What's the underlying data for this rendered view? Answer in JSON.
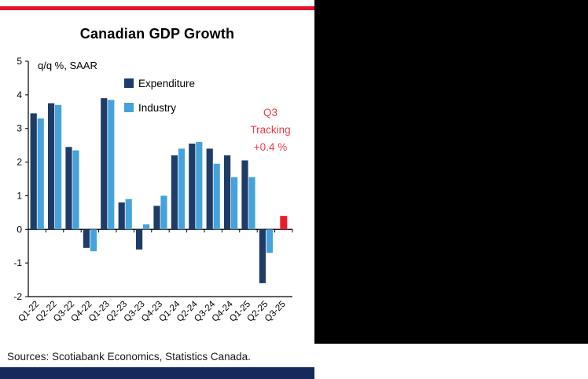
{
  "card": {
    "title": "Canadian GDP Growth",
    "plot_note": "q/q %, SAAR",
    "source": "Sources: Scotiabank Economics, Statistics Canada.",
    "accent_color": "#E8112A",
    "footer_color": "#17295B"
  },
  "legend": {
    "items": [
      {
        "label": "Expenditure",
        "color": "#1F3C68"
      },
      {
        "label": "Industry",
        "color": "#46A2DA"
      }
    ]
  },
  "annotation": {
    "lines": [
      "Q3",
      "Tracking",
      "+0.4 %"
    ],
    "color": "#ED3B4B"
  },
  "chart_data": {
    "type": "bar",
    "title": "Canadian GDP Growth",
    "ylabel": "q/q %, SAAR",
    "xlabel": "",
    "ylim": [
      -2,
      5
    ],
    "yticks": [
      5,
      4,
      3,
      2,
      1,
      0,
      -1,
      -2
    ],
    "grid": false,
    "legend_position": "upper-left-inside",
    "categories": [
      "Q1-22",
      "Q2-22",
      "Q3-22",
      "Q4-22",
      "Q1-23",
      "Q2-23",
      "Q3-23",
      "Q4-23",
      "Q1-24",
      "Q2-24",
      "Q3-24",
      "Q4-24",
      "Q1-25",
      "Q2-25",
      "Q3-25"
    ],
    "series": [
      {
        "name": "Expenditure",
        "color": "#1F3C68",
        "values": [
          3.45,
          3.75,
          2.45,
          -0.55,
          3.9,
          0.8,
          -0.6,
          0.7,
          2.2,
          2.55,
          2.4,
          2.2,
          2.05,
          -1.6,
          null
        ]
      },
      {
        "name": "Industry",
        "color": "#46A2DA",
        "values": [
          3.3,
          3.7,
          2.35,
          -0.65,
          3.85,
          0.9,
          0.15,
          1.0,
          2.4,
          2.6,
          1.95,
          1.55,
          1.55,
          -0.7,
          null
        ]
      },
      {
        "name": "Q3 Tracking",
        "color": "#EB1C2D",
        "values": [
          null,
          null,
          null,
          null,
          null,
          null,
          null,
          null,
          null,
          null,
          null,
          null,
          null,
          null,
          0.4
        ]
      }
    ]
  }
}
